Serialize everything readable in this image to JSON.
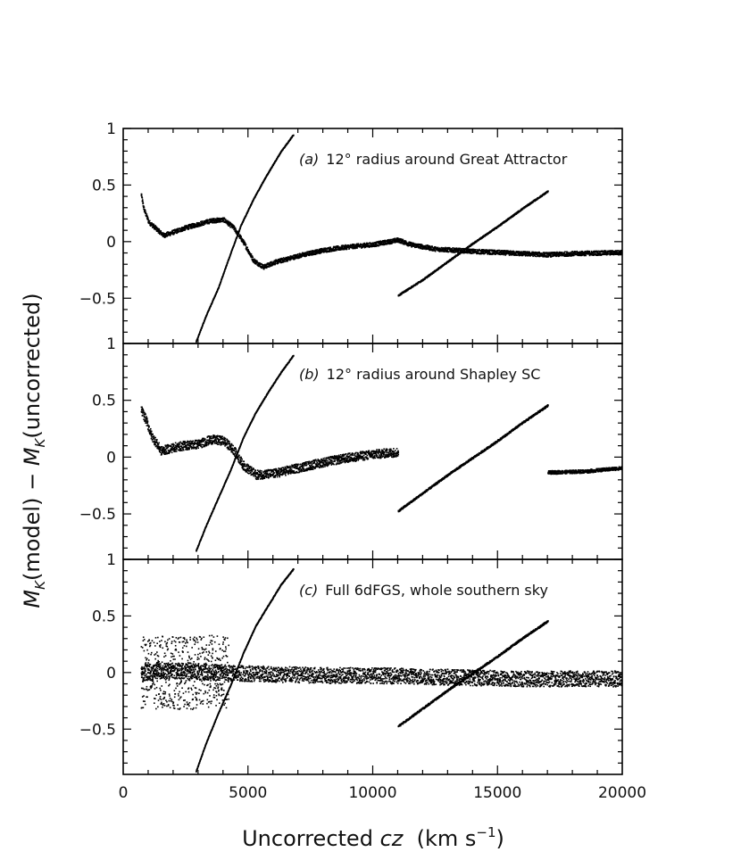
{
  "chart_data": {
    "type": "scatter",
    "xlabel": {
      "prefix": "Uncorrected ",
      "var": "cz",
      "unit_open": "  (km s",
      "unit_sup": "−1",
      "unit_close": ")"
    },
    "ylabel": {
      "m1": "M",
      "s1": "K",
      "t1": "(model) − ",
      "m2": "M",
      "s2": "K",
      "t2": "(uncorrected)"
    },
    "xlim": [
      0,
      20000
    ],
    "ylim": [
      -0.9,
      1.0
    ],
    "x_ticks": [
      0,
      5000,
      10000,
      15000,
      20000
    ],
    "x_tick_labels": [
      "0",
      "5000",
      "10000",
      "15000",
      "20000"
    ],
    "y_ticks": [
      -0.5,
      0,
      0.5,
      1
    ],
    "y_tick_labels": [
      "−0.5",
      "0",
      "0.5",
      "1"
    ],
    "grid": false,
    "marker_color": "#000000",
    "panels": [
      {
        "id": "a",
        "label_letter": "(a)",
        "label_text": "12° radius around Great Attractor",
        "series": [
          {
            "kind": "band",
            "points": [
              [
                700,
                0.42
              ],
              [
                800,
                0.3
              ],
              [
                1000,
                0.18
              ],
              [
                1300,
                0.12
              ],
              [
                1600,
                0.06
              ],
              [
                2000,
                0.09
              ],
              [
                2500,
                0.13
              ],
              [
                3000,
                0.16
              ],
              [
                3500,
                0.19
              ],
              [
                4000,
                0.2
              ],
              [
                4400,
                0.13
              ],
              [
                4800,
                0.0
              ],
              [
                5200,
                -0.16
              ],
              [
                5600,
                -0.22
              ],
              [
                6000,
                -0.18
              ],
              [
                7000,
                -0.12
              ],
              [
                8000,
                -0.07
              ],
              [
                9000,
                -0.04
              ],
              [
                10000,
                -0.02
              ],
              [
                11000,
                0.02
              ],
              [
                11500,
                -0.02
              ],
              [
                12500,
                -0.06
              ],
              [
                14000,
                -0.08
              ],
              [
                16000,
                -0.1
              ],
              [
                17000,
                -0.11
              ],
              [
                18000,
                -0.1
              ],
              [
                20000,
                -0.09
              ]
            ],
            "spread": 0.02
          },
          {
            "kind": "line",
            "points": [
              [
                2900,
                -0.88
              ],
              [
                3300,
                -0.65
              ],
              [
                3800,
                -0.4
              ],
              [
                4200,
                -0.15
              ],
              [
                4700,
                0.15
              ],
              [
                5200,
                0.38
              ],
              [
                5700,
                0.58
              ],
              [
                6300,
                0.8
              ],
              [
                6800,
                0.95
              ]
            ],
            "spread": 0.004
          },
          {
            "kind": "line",
            "points": [
              [
                11000,
                -0.47
              ],
              [
                12000,
                -0.33
              ],
              [
                13000,
                -0.17
              ],
              [
                14000,
                -0.01
              ],
              [
                15000,
                0.14
              ],
              [
                16000,
                0.3
              ],
              [
                17000,
                0.45
              ]
            ],
            "spread": 0.006
          }
        ]
      },
      {
        "id": "b",
        "label_letter": "(b)",
        "label_text": "12° radius around Shapley SC",
        "series": [
          {
            "kind": "band",
            "points": [
              [
                700,
                0.42
              ],
              [
                900,
                0.33
              ],
              [
                1100,
                0.2
              ],
              [
                1500,
                0.06
              ],
              [
                2000,
                0.09
              ],
              [
                2500,
                0.11
              ],
              [
                3000,
                0.12
              ],
              [
                3500,
                0.16
              ],
              [
                4000,
                0.15
              ],
              [
                4400,
                0.07
              ],
              [
                4800,
                -0.07
              ],
              [
                5300,
                -0.15
              ],
              [
                6000,
                -0.14
              ],
              [
                7000,
                -0.09
              ],
              [
                8000,
                -0.04
              ],
              [
                9000,
                0.0
              ],
              [
                10000,
                0.03
              ],
              [
                11000,
                0.05
              ]
            ],
            "spread": 0.04
          },
          {
            "kind": "line",
            "points": [
              [
                2900,
                -0.82
              ],
              [
                3300,
                -0.6
              ],
              [
                3800,
                -0.35
              ],
              [
                4300,
                -0.1
              ],
              [
                4800,
                0.18
              ],
              [
                5300,
                0.4
              ],
              [
                5800,
                0.58
              ],
              [
                6300,
                0.75
              ],
              [
                6800,
                0.9
              ]
            ],
            "spread": 0.004
          },
          {
            "kind": "line",
            "points": [
              [
                11000,
                -0.47
              ],
              [
                12000,
                -0.31
              ],
              [
                13000,
                -0.15
              ],
              [
                14000,
                0.0
              ],
              [
                15000,
                0.15
              ],
              [
                16000,
                0.31
              ],
              [
                17000,
                0.46
              ]
            ],
            "spread": 0.008
          },
          {
            "kind": "line",
            "points": [
              [
                17000,
                -0.13
              ],
              [
                18500,
                -0.12
              ],
              [
                20000,
                -0.09
              ]
            ],
            "spread": 0.015
          }
        ]
      },
      {
        "id": "c",
        "label_letter": "(c)",
        "label_text": "Full 6dFGS, whole southern sky",
        "series": [
          {
            "kind": "band",
            "points": [
              [
                700,
                0.0
              ],
              [
                1500,
                0.02
              ],
              [
                2500,
                0.02
              ],
              [
                3500,
                0.01
              ],
              [
                4500,
                0.0
              ],
              [
                6000,
                -0.01
              ],
              [
                8000,
                -0.02
              ],
              [
                10000,
                -0.02
              ],
              [
                12000,
                -0.03
              ],
              [
                14000,
                -0.04
              ],
              [
                16000,
                -0.05
              ],
              [
                18000,
                -0.05
              ],
              [
                20000,
                -0.05
              ]
            ],
            "spread": 0.07
          },
          {
            "kind": "band",
            "points": [
              [
                700,
                0.0
              ],
              [
                1000,
                0.0
              ],
              [
                1300,
                0.0
              ],
              [
                1700,
                0.02
              ],
              [
                2200,
                0.0
              ],
              [
                2800,
                0.0
              ],
              [
                3500,
                0.02
              ],
              [
                4200,
                0.0
              ]
            ],
            "spread": 0.32
          },
          {
            "kind": "line",
            "points": [
              [
                2900,
                -0.87
              ],
              [
                3300,
                -0.62
              ],
              [
                3800,
                -0.35
              ],
              [
                4300,
                -0.1
              ],
              [
                4800,
                0.18
              ],
              [
                5300,
                0.42
              ],
              [
                5800,
                0.6
              ],
              [
                6300,
                0.78
              ],
              [
                6800,
                0.92
              ]
            ],
            "spread": 0.004
          },
          {
            "kind": "line",
            "points": [
              [
                11000,
                -0.47
              ],
              [
                12000,
                -0.31
              ],
              [
                13000,
                -0.15
              ],
              [
                14000,
                0.0
              ],
              [
                15000,
                0.15
              ],
              [
                16000,
                0.31
              ],
              [
                17000,
                0.46
              ]
            ],
            "spread": 0.008
          }
        ]
      }
    ]
  }
}
